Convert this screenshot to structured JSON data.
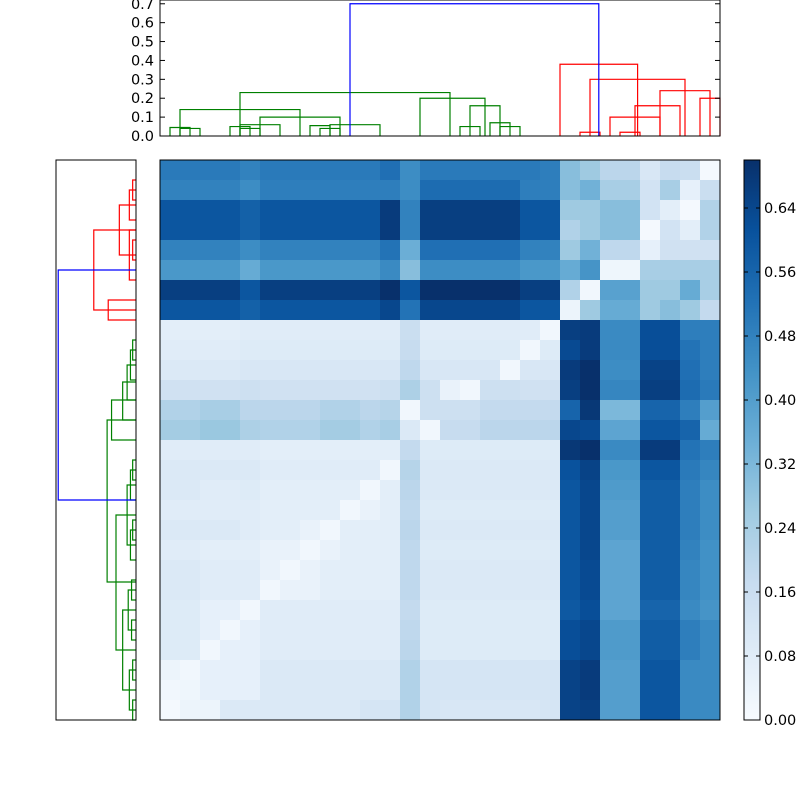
{
  "chart_data": {
    "type": "heatmap",
    "title": "",
    "colormap": "Blues",
    "colors": {
      "top_cluster_a": "#008000",
      "top_cluster_b": "#ff0000",
      "top_link": "#0000ff"
    },
    "heatmap_size": [
      28,
      28
    ],
    "matrix": [
      [
        0.5,
        0.5,
        0.5,
        0.5,
        0.48,
        0.5,
        0.5,
        0.5,
        0.5,
        0.5,
        0.5,
        0.53,
        0.45,
        0.5,
        0.5,
        0.5,
        0.5,
        0.5,
        0.5,
        0.49,
        0.3,
        0.26,
        0.2,
        0.2,
        0.11,
        0.17,
        0.16,
        0.01
      ],
      [
        0.48,
        0.48,
        0.48,
        0.48,
        0.45,
        0.49,
        0.49,
        0.49,
        0.49,
        0.49,
        0.49,
        0.49,
        0.45,
        0.54,
        0.54,
        0.54,
        0.54,
        0.54,
        0.49,
        0.49,
        0.3,
        0.34,
        0.24,
        0.24,
        0.13,
        0.24,
        0.06,
        0.16
      ],
      [
        0.6,
        0.6,
        0.6,
        0.6,
        0.57,
        0.6,
        0.6,
        0.6,
        0.6,
        0.6,
        0.6,
        0.67,
        0.48,
        0.66,
        0.66,
        0.66,
        0.66,
        0.66,
        0.6,
        0.6,
        0.26,
        0.26,
        0.3,
        0.3,
        0.13,
        0.07,
        0.01,
        0.22
      ],
      [
        0.6,
        0.6,
        0.6,
        0.6,
        0.57,
        0.6,
        0.6,
        0.6,
        0.6,
        0.6,
        0.6,
        0.67,
        0.48,
        0.66,
        0.66,
        0.66,
        0.66,
        0.66,
        0.6,
        0.6,
        0.22,
        0.26,
        0.3,
        0.3,
        0.01,
        0.13,
        0.07,
        0.22
      ],
      [
        0.48,
        0.48,
        0.48,
        0.48,
        0.45,
        0.48,
        0.48,
        0.48,
        0.48,
        0.48,
        0.48,
        0.52,
        0.35,
        0.53,
        0.53,
        0.53,
        0.53,
        0.53,
        0.48,
        0.48,
        0.26,
        0.34,
        0.19,
        0.19,
        0.06,
        0.14,
        0.14,
        0.14
      ],
      [
        0.42,
        0.42,
        0.42,
        0.42,
        0.36,
        0.42,
        0.42,
        0.42,
        0.42,
        0.42,
        0.42,
        0.46,
        0.3,
        0.45,
        0.45,
        0.45,
        0.45,
        0.45,
        0.42,
        0.42,
        0.36,
        0.43,
        0.03,
        0.03,
        0.24,
        0.24,
        0.24,
        0.24
      ],
      [
        0.66,
        0.66,
        0.66,
        0.66,
        0.6,
        0.66,
        0.66,
        0.66,
        0.66,
        0.66,
        0.66,
        0.7,
        0.6,
        0.72,
        0.72,
        0.72,
        0.72,
        0.72,
        0.66,
        0.66,
        0.22,
        0.02,
        0.39,
        0.39,
        0.26,
        0.26,
        0.36,
        0.24
      ],
      [
        0.6,
        0.6,
        0.6,
        0.6,
        0.57,
        0.6,
        0.6,
        0.6,
        0.6,
        0.6,
        0.6,
        0.64,
        0.52,
        0.64,
        0.64,
        0.64,
        0.64,
        0.64,
        0.6,
        0.6,
        0.04,
        0.26,
        0.36,
        0.36,
        0.26,
        0.3,
        0.26,
        0.18
      ],
      [
        0.07,
        0.07,
        0.07,
        0.07,
        0.08,
        0.08,
        0.08,
        0.08,
        0.08,
        0.08,
        0.08,
        0.08,
        0.16,
        0.08,
        0.08,
        0.08,
        0.08,
        0.08,
        0.08,
        0.02,
        0.66,
        0.67,
        0.46,
        0.46,
        0.62,
        0.62,
        0.49,
        0.49
      ],
      [
        0.08,
        0.08,
        0.08,
        0.08,
        0.09,
        0.09,
        0.09,
        0.09,
        0.09,
        0.09,
        0.09,
        0.09,
        0.17,
        0.09,
        0.09,
        0.09,
        0.09,
        0.09,
        0.02,
        0.09,
        0.63,
        0.67,
        0.46,
        0.46,
        0.62,
        0.62,
        0.52,
        0.49
      ],
      [
        0.1,
        0.1,
        0.1,
        0.1,
        0.11,
        0.11,
        0.11,
        0.11,
        0.11,
        0.11,
        0.11,
        0.11,
        0.19,
        0.11,
        0.11,
        0.11,
        0.11,
        0.02,
        0.11,
        0.11,
        0.67,
        0.7,
        0.45,
        0.45,
        0.65,
        0.65,
        0.53,
        0.49
      ],
      [
        0.14,
        0.14,
        0.14,
        0.14,
        0.15,
        0.14,
        0.14,
        0.14,
        0.14,
        0.14,
        0.14,
        0.15,
        0.23,
        0.15,
        0.05,
        0.02,
        0.15,
        0.15,
        0.14,
        0.14,
        0.66,
        0.71,
        0.47,
        0.47,
        0.66,
        0.66,
        0.54,
        0.5
      ],
      [
        0.22,
        0.22,
        0.24,
        0.24,
        0.2,
        0.2,
        0.2,
        0.2,
        0.22,
        0.22,
        0.2,
        0.21,
        0.02,
        0.15,
        0.15,
        0.15,
        0.18,
        0.18,
        0.18,
        0.18,
        0.56,
        0.68,
        0.32,
        0.32,
        0.56,
        0.56,
        0.49,
        0.4
      ],
      [
        0.25,
        0.25,
        0.27,
        0.27,
        0.23,
        0.22,
        0.22,
        0.22,
        0.25,
        0.25,
        0.22,
        0.24,
        0.1,
        0.02,
        0.17,
        0.17,
        0.2,
        0.2,
        0.2,
        0.2,
        0.64,
        0.63,
        0.38,
        0.38,
        0.6,
        0.6,
        0.56,
        0.36
      ],
      [
        0.08,
        0.08,
        0.08,
        0.08,
        0.08,
        0.07,
        0.07,
        0.07,
        0.07,
        0.07,
        0.07,
        0.07,
        0.18,
        0.09,
        0.09,
        0.09,
        0.09,
        0.09,
        0.09,
        0.09,
        0.68,
        0.71,
        0.46,
        0.46,
        0.67,
        0.67,
        0.52,
        0.49
      ],
      [
        0.1,
        0.1,
        0.1,
        0.1,
        0.1,
        0.08,
        0.08,
        0.08,
        0.08,
        0.08,
        0.08,
        0.02,
        0.21,
        0.1,
        0.1,
        0.1,
        0.1,
        0.1,
        0.1,
        0.1,
        0.61,
        0.65,
        0.42,
        0.42,
        0.6,
        0.6,
        0.5,
        0.47
      ],
      [
        0.1,
        0.1,
        0.08,
        0.08,
        0.09,
        0.07,
        0.07,
        0.07,
        0.07,
        0.07,
        0.02,
        0.07,
        0.2,
        0.1,
        0.1,
        0.1,
        0.1,
        0.1,
        0.1,
        0.1,
        0.6,
        0.64,
        0.41,
        0.41,
        0.58,
        0.58,
        0.49,
        0.45
      ],
      [
        0.08,
        0.08,
        0.08,
        0.08,
        0.08,
        0.07,
        0.07,
        0.07,
        0.07,
        0.02,
        0.05,
        0.07,
        0.19,
        0.09,
        0.09,
        0.09,
        0.09,
        0.09,
        0.09,
        0.09,
        0.6,
        0.64,
        0.4,
        0.4,
        0.58,
        0.58,
        0.49,
        0.45
      ],
      [
        0.1,
        0.1,
        0.1,
        0.1,
        0.08,
        0.07,
        0.07,
        0.05,
        0.02,
        0.07,
        0.07,
        0.07,
        0.2,
        0.1,
        0.1,
        0.1,
        0.1,
        0.1,
        0.1,
        0.1,
        0.6,
        0.64,
        0.4,
        0.4,
        0.58,
        0.58,
        0.49,
        0.45
      ],
      [
        0.08,
        0.08,
        0.07,
        0.07,
        0.07,
        0.05,
        0.05,
        0.02,
        0.05,
        0.07,
        0.07,
        0.07,
        0.19,
        0.09,
        0.09,
        0.09,
        0.09,
        0.09,
        0.09,
        0.09,
        0.6,
        0.64,
        0.38,
        0.38,
        0.58,
        0.58,
        0.48,
        0.44
      ],
      [
        0.1,
        0.1,
        0.08,
        0.08,
        0.08,
        0.05,
        0.02,
        0.05,
        0.07,
        0.07,
        0.07,
        0.07,
        0.19,
        0.1,
        0.1,
        0.1,
        0.1,
        0.1,
        0.1,
        0.1,
        0.6,
        0.63,
        0.38,
        0.38,
        0.58,
        0.58,
        0.47,
        0.44
      ],
      [
        0.1,
        0.1,
        0.08,
        0.08,
        0.08,
        0.02,
        0.05,
        0.05,
        0.07,
        0.07,
        0.07,
        0.07,
        0.19,
        0.1,
        0.1,
        0.1,
        0.1,
        0.1,
        0.1,
        0.1,
        0.6,
        0.63,
        0.38,
        0.38,
        0.58,
        0.58,
        0.47,
        0.44
      ],
      [
        0.09,
        0.09,
        0.06,
        0.06,
        0.02,
        0.08,
        0.08,
        0.08,
        0.08,
        0.08,
        0.08,
        0.08,
        0.18,
        0.09,
        0.09,
        0.09,
        0.09,
        0.09,
        0.09,
        0.09,
        0.59,
        0.62,
        0.38,
        0.38,
        0.56,
        0.56,
        0.46,
        0.43
      ],
      [
        0.09,
        0.09,
        0.06,
        0.02,
        0.06,
        0.08,
        0.08,
        0.08,
        0.08,
        0.08,
        0.08,
        0.08,
        0.19,
        0.09,
        0.09,
        0.09,
        0.09,
        0.09,
        0.09,
        0.09,
        0.62,
        0.64,
        0.41,
        0.41,
        0.58,
        0.58,
        0.49,
        0.46
      ],
      [
        0.09,
        0.09,
        0.02,
        0.06,
        0.06,
        0.08,
        0.08,
        0.08,
        0.08,
        0.08,
        0.08,
        0.08,
        0.2,
        0.09,
        0.09,
        0.09,
        0.09,
        0.09,
        0.09,
        0.09,
        0.62,
        0.64,
        0.41,
        0.41,
        0.58,
        0.58,
        0.49,
        0.46
      ],
      [
        0.04,
        0.02,
        0.06,
        0.06,
        0.06,
        0.1,
        0.1,
        0.1,
        0.1,
        0.1,
        0.1,
        0.1,
        0.22,
        0.12,
        0.12,
        0.12,
        0.12,
        0.12,
        0.12,
        0.12,
        0.65,
        0.67,
        0.4,
        0.4,
        0.6,
        0.6,
        0.46,
        0.46
      ],
      [
        0.02,
        0.03,
        0.06,
        0.06,
        0.06,
        0.1,
        0.1,
        0.1,
        0.1,
        0.1,
        0.1,
        0.1,
        0.22,
        0.12,
        0.12,
        0.12,
        0.12,
        0.12,
        0.12,
        0.12,
        0.65,
        0.67,
        0.4,
        0.4,
        0.6,
        0.6,
        0.46,
        0.46
      ],
      [
        0.01,
        0.04,
        0.04,
        0.1,
        0.1,
        0.1,
        0.1,
        0.1,
        0.1,
        0.1,
        0.12,
        0.12,
        0.22,
        0.12,
        0.11,
        0.11,
        0.11,
        0.11,
        0.11,
        0.12,
        0.65,
        0.66,
        0.4,
        0.4,
        0.6,
        0.6,
        0.46,
        0.46
      ]
    ],
    "top_dendrogram": {
      "ylim": [
        0,
        0.72
      ],
      "yticks": [
        "0.0",
        "0.1",
        "0.2",
        "0.3",
        "0.4",
        "0.5",
        "0.6",
        "0.7"
      ],
      "links": [
        {
          "a": 0.5,
          "b": 1.5,
          "h": 0.04,
          "cluster": "a"
        },
        {
          "a": 0,
          "b": 1,
          "h": 0.045,
          "cluster": "a"
        },
        {
          "a": 3.5,
          "b": 4.5,
          "h": 0.04,
          "cluster": "a"
        },
        {
          "a": 3,
          "b": 4,
          "h": 0.05,
          "cluster": "a"
        },
        {
          "a": 3.5,
          "b": 5.5,
          "h": 0.06,
          "cluster": "a"
        },
        {
          "a": 7.5,
          "b": 8.5,
          "h": 0.04,
          "cluster": "a"
        },
        {
          "a": 7,
          "b": 8,
          "h": 0.055,
          "cluster": "a"
        },
        {
          "a": 8,
          "b": 10.5,
          "h": 0.06,
          "cluster": "a"
        },
        {
          "a": 4.5,
          "b": 8.5,
          "h": 0.1,
          "cluster": "a"
        },
        {
          "a": 0.5,
          "b": 6.5,
          "h": 0.14,
          "cluster": "a"
        },
        {
          "a": 14.5,
          "b": 15.5,
          "h": 0.05,
          "cluster": "a"
        },
        {
          "a": 16.5,
          "b": 17.5,
          "h": 0.05,
          "cluster": "a"
        },
        {
          "a": 16,
          "b": 17,
          "h": 0.07,
          "cluster": "a"
        },
        {
          "a": 15,
          "b": 16.5,
          "h": 0.16,
          "cluster": "a"
        },
        {
          "a": 12.5,
          "b": 15.75,
          "h": 0.2,
          "cluster": "a"
        },
        {
          "a": 3.5,
          "b": 14,
          "h": 0.23,
          "cluster": "a"
        },
        {
          "a": 20.5,
          "b": 21.5,
          "h": 0.02,
          "cluster": "b"
        },
        {
          "a": 22.5,
          "b": 23.5,
          "h": 0.02,
          "cluster": "b"
        },
        {
          "a": 22,
          "b": 24.5,
          "h": 0.1,
          "cluster": "b"
        },
        {
          "a": 23.25,
          "b": 25.5,
          "h": 0.16,
          "cluster": "b"
        },
        {
          "a": 26.5,
          "b": 27.5,
          "h": 0.2,
          "cluster": "b"
        },
        {
          "a": 24.5,
          "b": 27,
          "h": 0.24,
          "cluster": "b"
        },
        {
          "a": 21,
          "b": 25.75,
          "h": 0.3,
          "cluster": "b"
        },
        {
          "a": 19.5,
          "b": 23.38,
          "h": 0.38,
          "cluster": "b"
        },
        {
          "a": 9,
          "b": 21.44,
          "h": 0.7,
          "cluster": "link"
        }
      ]
    },
    "left_dendrogram": {
      "xlim": [
        0,
        0.72
      ],
      "links": [
        {
          "a": 0.5,
          "b": 1.5,
          "h": 0.03,
          "cluster": "b"
        },
        {
          "a": 1,
          "b": 2.5,
          "h": 0.06,
          "cluster": "b"
        },
        {
          "a": 3.5,
          "b": 4.5,
          "h": 0.03,
          "cluster": "b"
        },
        {
          "a": 3,
          "b": 5.5,
          "h": 0.06,
          "cluster": "b"
        },
        {
          "a": 1.75,
          "b": 4.25,
          "h": 0.15,
          "cluster": "b"
        },
        {
          "a": 6.5,
          "b": 7.5,
          "h": 0.25,
          "cluster": "b"
        },
        {
          "a": 3,
          "b": 7,
          "h": 0.38,
          "cluster": "b"
        },
        {
          "a": 8.5,
          "b": 9.5,
          "h": 0.03,
          "cluster": "a"
        },
        {
          "a": 9,
          "b": 10.5,
          "h": 0.05,
          "cluster": "a"
        },
        {
          "a": 9.75,
          "b": 11.5,
          "h": 0.08,
          "cluster": "a"
        },
        {
          "a": 10.6,
          "b": 12.5,
          "h": 0.12,
          "cluster": "a"
        },
        {
          "a": 11.5,
          "b": 13.5,
          "h": 0.22,
          "cluster": "a"
        },
        {
          "a": 14.5,
          "b": 15.5,
          "h": 0.03,
          "cluster": "a"
        },
        {
          "a": 15,
          "b": 16.5,
          "h": 0.05,
          "cluster": "a"
        },
        {
          "a": 17.5,
          "b": 18.5,
          "h": 0.03,
          "cluster": "a"
        },
        {
          "a": 18,
          "b": 19.5,
          "h": 0.05,
          "cluster": "a"
        },
        {
          "a": 15.75,
          "b": 18.75,
          "h": 0.08,
          "cluster": "a"
        },
        {
          "a": 20.5,
          "b": 21.5,
          "h": 0.04,
          "cluster": "a"
        },
        {
          "a": 22.5,
          "b": 23.5,
          "h": 0.04,
          "cluster": "a"
        },
        {
          "a": 21,
          "b": 23,
          "h": 0.07,
          "cluster": "a"
        },
        {
          "a": 24.5,
          "b": 25.5,
          "h": 0.03,
          "cluster": "a"
        },
        {
          "a": 26.5,
          "b": 27.5,
          "h": 0.03,
          "cluster": "a"
        },
        {
          "a": 25,
          "b": 27,
          "h": 0.06,
          "cluster": "a"
        },
        {
          "a": 22,
          "b": 26,
          "h": 0.12,
          "cluster": "a"
        },
        {
          "a": 17.25,
          "b": 24,
          "h": 0.18,
          "cluster": "a"
        },
        {
          "a": 12.5,
          "b": 20.6,
          "h": 0.26,
          "cluster": "a"
        },
        {
          "a": 5,
          "b": 16.5,
          "h": 0.7,
          "cluster": "link"
        }
      ]
    },
    "colorbar": {
      "vmin": 0.0,
      "vmax": 0.7,
      "ticks": [
        "0.00",
        "0.08",
        "0.16",
        "0.24",
        "0.32",
        "0.40",
        "0.48",
        "0.56",
        "0.64"
      ]
    }
  }
}
